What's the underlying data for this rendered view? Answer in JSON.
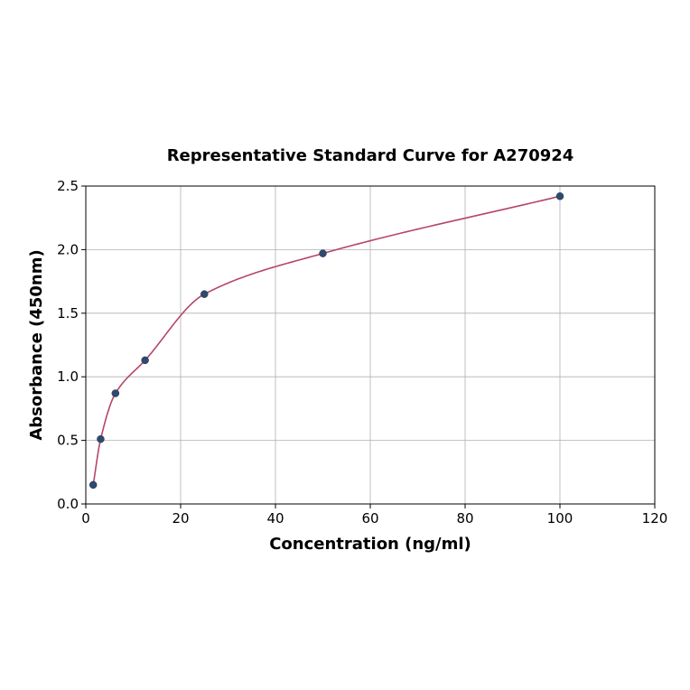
{
  "chart_data": {
    "type": "scatter",
    "title": "Representative Standard Curve for A270924",
    "xlabel": "Concentration (ng/ml)",
    "ylabel": "Absorbance (450nm)",
    "xlim": [
      0,
      120
    ],
    "ylim": [
      0,
      2.5
    ],
    "x_ticks": [
      "0",
      "20",
      "40",
      "60",
      "80",
      "100",
      "120"
    ],
    "y_ticks": [
      "0.0",
      "0.5",
      "1.0",
      "1.5",
      "2.0",
      "2.5"
    ],
    "grid": true,
    "series": [
      {
        "x": [
          1.56,
          3.13,
          6.25,
          12.5,
          25,
          50,
          100
        ],
        "y": [
          0.15,
          0.51,
          0.87,
          1.13,
          1.65,
          1.97,
          2.42
        ]
      }
    ],
    "fit_curve": {
      "type": "line",
      "color": "#b5466a"
    },
    "colors": {
      "points": "#2f4a6e",
      "curve": "#b5466a"
    }
  }
}
